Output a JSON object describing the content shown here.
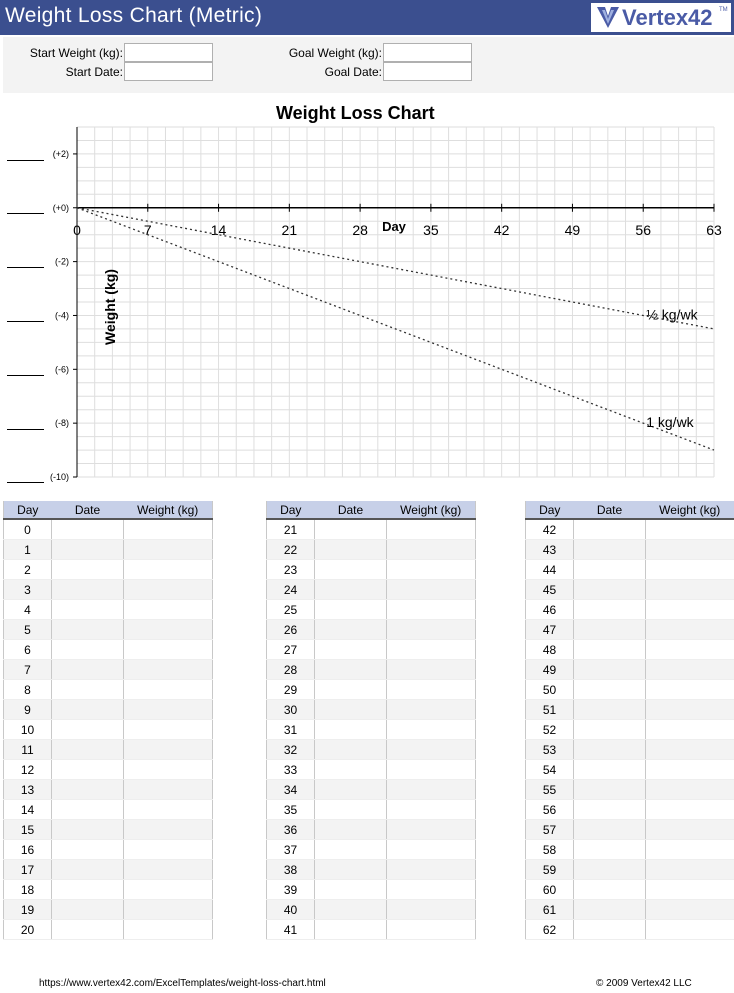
{
  "header": {
    "title": "Weight Loss Chart (Metric)",
    "logo_text": "Vertex42",
    "logo_tm": "TM"
  },
  "setup": {
    "start_weight_label": "Start Weight (kg):",
    "start_date_label": "Start Date:",
    "goal_weight_label": "Goal Weight (kg):",
    "goal_date_label": "Goal Date:",
    "start_weight_value": "",
    "start_date_value": "",
    "goal_weight_value": "",
    "goal_date_value": ""
  },
  "chart_data": {
    "type": "line",
    "title": "Weight Loss Chart",
    "xlabel": "Day",
    "ylabel": "Weight (kg)",
    "xlim": [
      0,
      63
    ],
    "ylim": [
      -10,
      3
    ],
    "x_ticks": [
      0,
      7,
      14,
      21,
      28,
      35,
      42,
      49,
      56,
      63
    ],
    "x_tick_labels": [
      "0",
      "7",
      "14",
      "21",
      "28",
      "35",
      "42",
      "49",
      "56",
      "63"
    ],
    "y_ticks": [
      2,
      0,
      -2,
      -4,
      -6,
      -8,
      -10
    ],
    "y_tick_labels": [
      "(+2)",
      "(+0)",
      "(-2)",
      "(-4)",
      "(-6)",
      "(-8)",
      "(-10)"
    ],
    "grid": true,
    "series": [
      {
        "name": "½ kg/wk",
        "style": "dotted",
        "color": "#333333",
        "x": [
          0,
          63
        ],
        "y": [
          0,
          -4.5
        ]
      },
      {
        "name": "1 kg/wk",
        "style": "dotted",
        "color": "#333333",
        "x": [
          0,
          63
        ],
        "y": [
          0,
          -9
        ]
      }
    ]
  },
  "log_tables": {
    "headers": [
      "Day",
      "Date",
      "Weight (kg)"
    ],
    "header_color": "#c7d0e8",
    "blocks": [
      {
        "days": [
          "0",
          "1",
          "2",
          "3",
          "4",
          "5",
          "6",
          "7",
          "8",
          "9",
          "10",
          "11",
          "12",
          "13",
          "14",
          "15",
          "16",
          "17",
          "18",
          "19",
          "20"
        ]
      },
      {
        "days": [
          "21",
          "22",
          "23",
          "24",
          "25",
          "26",
          "27",
          "28",
          "29",
          "30",
          "31",
          "32",
          "33",
          "34",
          "35",
          "36",
          "37",
          "38",
          "39",
          "40",
          "41"
        ]
      },
      {
        "days": [
          "42",
          "43",
          "44",
          "45",
          "46",
          "47",
          "48",
          "49",
          "50",
          "51",
          "52",
          "53",
          "54",
          "55",
          "56",
          "57",
          "58",
          "59",
          "60",
          "61",
          "62"
        ]
      }
    ]
  },
  "footer": {
    "url": "https://www.vertex42.com/ExcelTemplates/weight-loss-chart.html",
    "copyright": "© 2009 Vertex42 LLC"
  },
  "colors": {
    "header_bg": "#3b4f8f",
    "brand": "#4a5ba6"
  }
}
